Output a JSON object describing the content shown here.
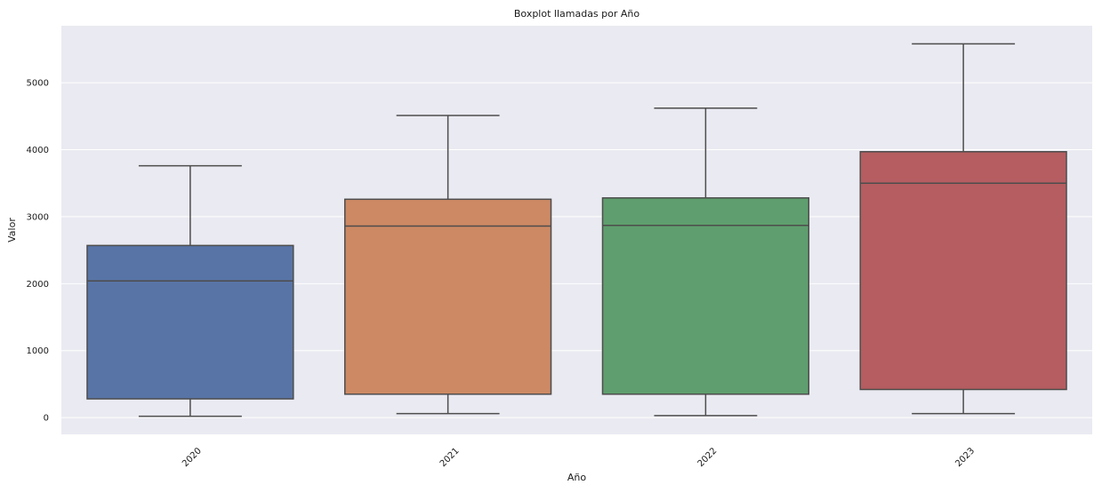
{
  "chart_data": {
    "type": "box",
    "title": "Boxplot llamadas por Año",
    "xlabel": "Año",
    "ylabel": "Valor",
    "categories": [
      "2020",
      "2021",
      "2022",
      "2023"
    ],
    "y_ticks": [
      0,
      1000,
      2000,
      3000,
      4000,
      5000
    ],
    "ylim": [
      -250,
      5850
    ],
    "grid": true,
    "background": "#eaeaf2",
    "box_edge_color": "#4d4d4d",
    "colors": [
      "#5874a6",
      "#cc8963",
      "#5f9e6e",
      "#b55d60"
    ],
    "boxes": [
      {
        "category": "2020",
        "whislo": 20,
        "q1": 280,
        "med": 2040,
        "q3": 2570,
        "whishi": 3760
      },
      {
        "category": "2021",
        "whislo": 60,
        "q1": 350,
        "med": 2860,
        "q3": 3260,
        "whishi": 4510
      },
      {
        "category": "2022",
        "whislo": 30,
        "q1": 350,
        "med": 2870,
        "q3": 3280,
        "whishi": 4620
      },
      {
        "category": "2023",
        "whislo": 60,
        "q1": 420,
        "med": 3500,
        "q3": 3970,
        "whishi": 5580
      }
    ]
  }
}
